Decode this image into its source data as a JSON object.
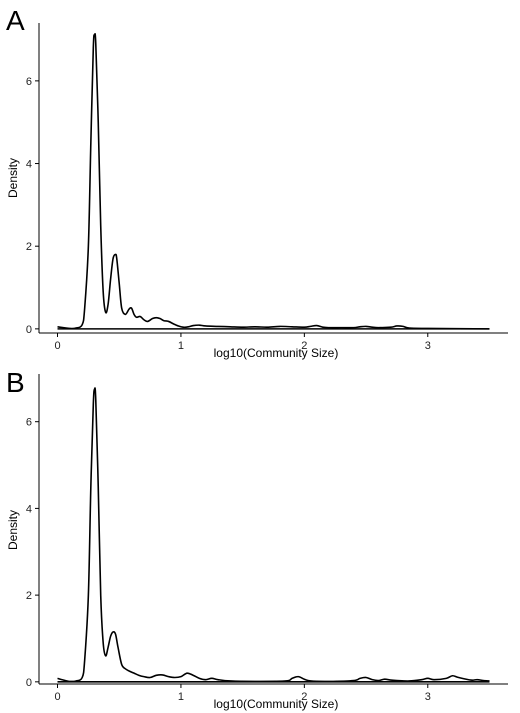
{
  "chart_data": [
    {
      "type": "line",
      "panel_label": "A",
      "xlabel": "log10(Community Size)",
      "ylabel": "Density",
      "xlim": [
        -0.15,
        3.65
      ],
      "ylim": [
        -0.1,
        7.4
      ],
      "xticks": [
        0,
        1,
        2,
        3
      ],
      "yticks": [
        0,
        2,
        4,
        6
      ],
      "grid": false,
      "series": [
        {
          "x": [
            0.0,
            0.1,
            0.15,
            0.2,
            0.22,
            0.25,
            0.27,
            0.29,
            0.3,
            0.31,
            0.33,
            0.35,
            0.37,
            0.39,
            0.41,
            0.43,
            0.45,
            0.47,
            0.48,
            0.5,
            0.52,
            0.55,
            0.58,
            0.6,
            0.62,
            0.64,
            0.67,
            0.7,
            0.73,
            0.77,
            0.8,
            0.83,
            0.86,
            0.9,
            0.94,
            0.98,
            1.02,
            1.06,
            1.1,
            1.15,
            1.2,
            1.3,
            1.4,
            1.5,
            1.6,
            1.7,
            1.8,
            1.9,
            2.0,
            2.05,
            2.1,
            2.15,
            2.2,
            2.3,
            2.4,
            2.45,
            2.5,
            2.55,
            2.6,
            2.7,
            2.75,
            2.8,
            2.85,
            3.0,
            3.5
          ],
          "y": [
            0.05,
            0.01,
            0.02,
            0.1,
            0.5,
            2.0,
            4.5,
            6.8,
            7.1,
            6.9,
            5.0,
            2.5,
            0.9,
            0.4,
            0.6,
            1.2,
            1.7,
            1.8,
            1.7,
            1.1,
            0.5,
            0.35,
            0.48,
            0.5,
            0.35,
            0.28,
            0.3,
            0.22,
            0.18,
            0.25,
            0.27,
            0.25,
            0.2,
            0.18,
            0.12,
            0.07,
            0.04,
            0.05,
            0.08,
            0.09,
            0.07,
            0.06,
            0.05,
            0.04,
            0.05,
            0.04,
            0.06,
            0.05,
            0.04,
            0.06,
            0.08,
            0.04,
            0.03,
            0.03,
            0.03,
            0.05,
            0.06,
            0.04,
            0.03,
            0.04,
            0.07,
            0.06,
            0.02,
            0.01,
            0.0
          ]
        }
      ]
    },
    {
      "type": "line",
      "panel_label": "B",
      "xlabel": "log10(Community Size)",
      "ylabel": "Density",
      "xlim": [
        -0.15,
        3.65
      ],
      "ylim": [
        -0.05,
        7.1
      ],
      "xticks": [
        0,
        1,
        2,
        3
      ],
      "yticks": [
        0,
        2,
        4,
        6
      ],
      "grid": false,
      "series": [
        {
          "x": [
            0.0,
            0.05,
            0.1,
            0.15,
            0.2,
            0.22,
            0.25,
            0.27,
            0.29,
            0.3,
            0.31,
            0.33,
            0.35,
            0.37,
            0.39,
            0.41,
            0.43,
            0.45,
            0.47,
            0.49,
            0.52,
            0.55,
            0.58,
            0.62,
            0.66,
            0.7,
            0.75,
            0.8,
            0.85,
            0.9,
            0.95,
            1.0,
            1.05,
            1.1,
            1.15,
            1.2,
            1.25,
            1.3,
            1.4,
            1.6,
            1.85,
            1.9,
            1.95,
            2.0,
            2.05,
            2.2,
            2.4,
            2.45,
            2.5,
            2.55,
            2.6,
            2.65,
            2.7,
            2.75,
            2.85,
            2.95,
            3.0,
            3.05,
            3.15,
            3.2,
            3.25,
            3.35,
            3.4,
            3.45,
            3.5
          ],
          "y": [
            0.08,
            0.04,
            0.01,
            0.02,
            0.1,
            0.5,
            2.0,
            4.5,
            6.4,
            6.75,
            6.5,
            4.5,
            2.0,
            0.9,
            0.6,
            0.8,
            1.05,
            1.15,
            1.1,
            0.8,
            0.4,
            0.3,
            0.25,
            0.2,
            0.15,
            0.12,
            0.1,
            0.15,
            0.16,
            0.12,
            0.1,
            0.12,
            0.2,
            0.15,
            0.08,
            0.05,
            0.08,
            0.05,
            0.02,
            0.01,
            0.02,
            0.08,
            0.12,
            0.06,
            0.02,
            0.01,
            0.03,
            0.08,
            0.1,
            0.05,
            0.03,
            0.06,
            0.04,
            0.03,
            0.02,
            0.05,
            0.08,
            0.05,
            0.08,
            0.14,
            0.1,
            0.04,
            0.05,
            0.03,
            0.02
          ]
        }
      ]
    }
  ]
}
